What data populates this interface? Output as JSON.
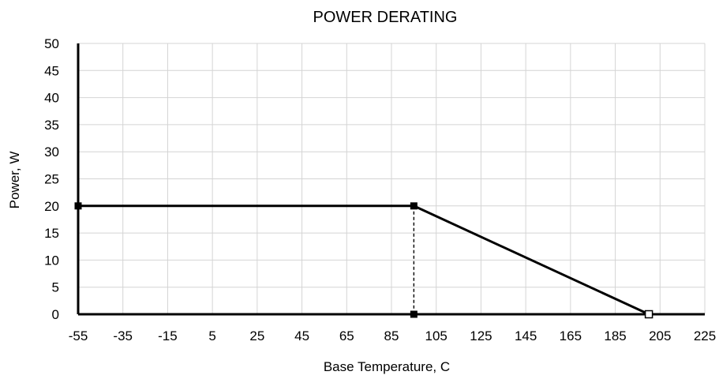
{
  "chart_data": {
    "type": "line",
    "title": "POWER DERATING",
    "xlabel": "Base Temperature, C",
    "ylabel": "Power, W",
    "xlim": [
      -55,
      225
    ],
    "ylim": [
      0,
      50
    ],
    "xticks": [
      -55,
      -35,
      -15,
      5,
      25,
      45,
      65,
      85,
      105,
      125,
      145,
      165,
      185,
      205,
      225
    ],
    "yticks": [
      0,
      5,
      10,
      15,
      20,
      25,
      30,
      35,
      40,
      45,
      50
    ],
    "grid": true,
    "series": [
      {
        "x": [
          -55,
          95,
          200
        ],
        "y": [
          20,
          20,
          0
        ],
        "markers": [
          "filled-square",
          "filled-square",
          "open-square"
        ]
      }
    ],
    "reference_lines": [
      {
        "style": "dashed",
        "x": [
          95,
          95
        ],
        "y": [
          20,
          0
        ],
        "markers": [
          "none",
          "filled-square"
        ]
      }
    ]
  }
}
